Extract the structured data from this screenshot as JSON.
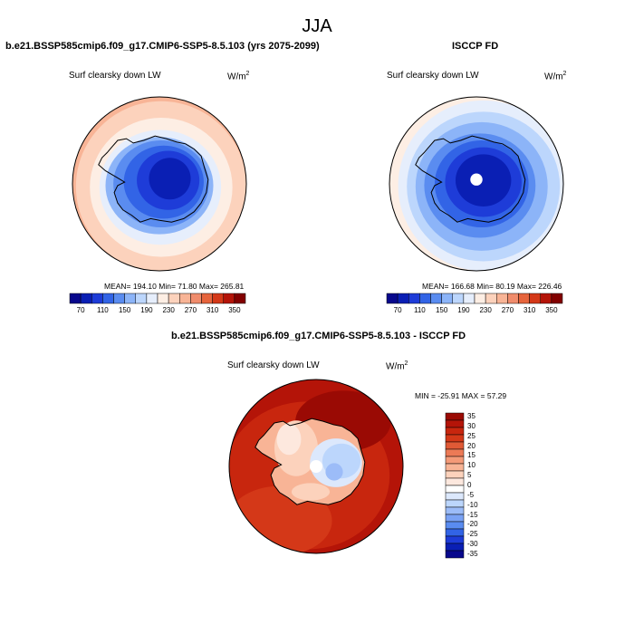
{
  "page": {
    "season": "JJA",
    "panel_left_title": "b.e21.BSSP585cmip6.f09_g17.CMIP6-SSP5-8.5.103 (yrs 2075-2099)",
    "panel_right_title": "ISCCP FD",
    "panel_bottom_title": "b.e21.BSSP585cmip6.f09_g17.CMIP6-SSP5-8.5.103 - ISCCP FD",
    "variable": "Surf clearsky down LW",
    "units": "W/m",
    "units_exp": "2"
  },
  "colors": {
    "abs_scale": [
      "#08088c",
      "#0a1fb4",
      "#1e3cd8",
      "#3264e6",
      "#5a8cf0",
      "#8cb4f8",
      "#bcd6fc",
      "#e6eefc",
      "#fdeee4",
      "#fcd2bc",
      "#f8b496",
      "#f08c6c",
      "#e6643c",
      "#d43818",
      "#b41408",
      "#820000"
    ],
    "diff_scale": [
      "#08088c",
      "#0a1fb4",
      "#1e3cd8",
      "#3264e6",
      "#5a8cf0",
      "#7aa2f4",
      "#9cbcf8",
      "#bcd6fc",
      "#dce8fc",
      "#ffffff",
      "#fde8de",
      "#fcd2bc",
      "#f8b496",
      "#f49a78",
      "#ec7a56",
      "#e05a36",
      "#d43818",
      "#c8260e",
      "#b41408",
      "#9a0a04"
    ]
  },
  "chart_data": [
    {
      "type": "heatmap",
      "title": "b.e21.BSSP585cmip6.f09_g17.CMIP6-SSP5-8.5.103 (yrs 2075-2099)",
      "variable": "Surf clearsky down LW",
      "units": "W/m2",
      "projection": "south polar stereographic",
      "stats": {
        "mean": "194.10",
        "min": "71.80",
        "max": "265.81"
      },
      "stats_text": "MEAN= 194.10  Min=  71.80  Max= 265.81",
      "colorbar_levels": [
        70,
        90,
        110,
        130,
        150,
        170,
        190,
        210,
        230,
        250,
        270,
        290,
        310,
        330,
        350
      ],
      "colorbar_labels": [
        "70",
        "110",
        "150",
        "190",
        "230",
        "270",
        "310",
        "350"
      ]
    },
    {
      "type": "heatmap",
      "title": "ISCCP FD",
      "variable": "Surf clearsky down LW",
      "units": "W/m2",
      "projection": "south polar stereographic",
      "stats": {
        "mean": "166.68",
        "min": "80.19",
        "max": "226.46"
      },
      "stats_text": "MEAN= 166.68  Min=  80.19  Max= 226.46",
      "colorbar_levels": [
        70,
        90,
        110,
        130,
        150,
        170,
        190,
        210,
        230,
        250,
        270,
        290,
        310,
        330,
        350
      ],
      "colorbar_labels": [
        "70",
        "110",
        "150",
        "190",
        "230",
        "270",
        "310",
        "350"
      ]
    },
    {
      "type": "heatmap",
      "title": "b.e21.BSSP585cmip6.f09_g17.CMIP6-SSP5-8.5.103 - ISCCP FD",
      "variable": "Surf clearsky down LW",
      "units": "W/m2",
      "projection": "south polar stereographic",
      "stats": {
        "min": "-25.91",
        "max": "57.29"
      },
      "stats_text": "MIN = -25.91  MAX =  57.29",
      "colorbar_levels": [
        -35,
        -30,
        -25,
        -20,
        -15,
        -10,
        -5,
        0,
        5,
        10,
        15,
        20,
        25,
        30,
        35
      ],
      "colorbar_labels": [
        "35",
        "30",
        "25",
        "20",
        "15",
        "10",
        "5",
        "0",
        "-5",
        "-10",
        "-15",
        "-20",
        "-25",
        "-30",
        "-35"
      ]
    }
  ]
}
